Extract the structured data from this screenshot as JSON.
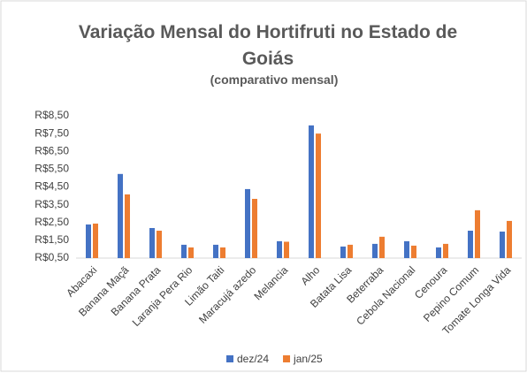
{
  "chart_data": {
    "type": "bar",
    "title": "Variação Mensal do Hortifruti no Estado de Goiás",
    "subtitle": "(comparativo mensal)",
    "categories": [
      "Abacaxi",
      "Banana Maçã",
      "Banana Prata",
      "Laranja Pera Rio",
      "Limão Taiti",
      "Maracujá azedo",
      "Melancia",
      "Alho",
      "Batata Lisa",
      "Beterraba",
      "Cebola Nacional",
      "Cenoura",
      "Pepino Comum",
      "Tomate Longa Vida"
    ],
    "series": [
      {
        "name": "dez/24",
        "color": "#4472c4",
        "values": [
          2.39,
          5.23,
          2.19,
          1.25,
          1.25,
          4.38,
          1.45,
          7.96,
          1.15,
          1.3,
          1.45,
          1.1,
          2.04,
          1.99
        ]
      },
      {
        "name": "jan/25",
        "color": "#ed7d31",
        "values": [
          2.44,
          4.08,
          2.04,
          1.1,
          1.1,
          3.83,
          1.42,
          7.5,
          1.25,
          1.7,
          1.2,
          1.3,
          3.19,
          2.59
        ]
      }
    ],
    "ylim": [
      0.5,
      8.5
    ],
    "yticks": [
      {
        "value": 0.5,
        "label": "R$0,50"
      },
      {
        "value": 1.5,
        "label": "R$1,50"
      },
      {
        "value": 2.5,
        "label": "R$2,50"
      },
      {
        "value": 3.5,
        "label": "R$3,50"
      },
      {
        "value": 4.5,
        "label": "R$4,50"
      },
      {
        "value": 5.5,
        "label": "R$5,50"
      },
      {
        "value": 6.5,
        "label": "R$6,50"
      },
      {
        "value": 7.5,
        "label": "R$7,50"
      },
      {
        "value": 8.5,
        "label": "R$8,50"
      }
    ],
    "grid": false,
    "legend": "bottom"
  }
}
